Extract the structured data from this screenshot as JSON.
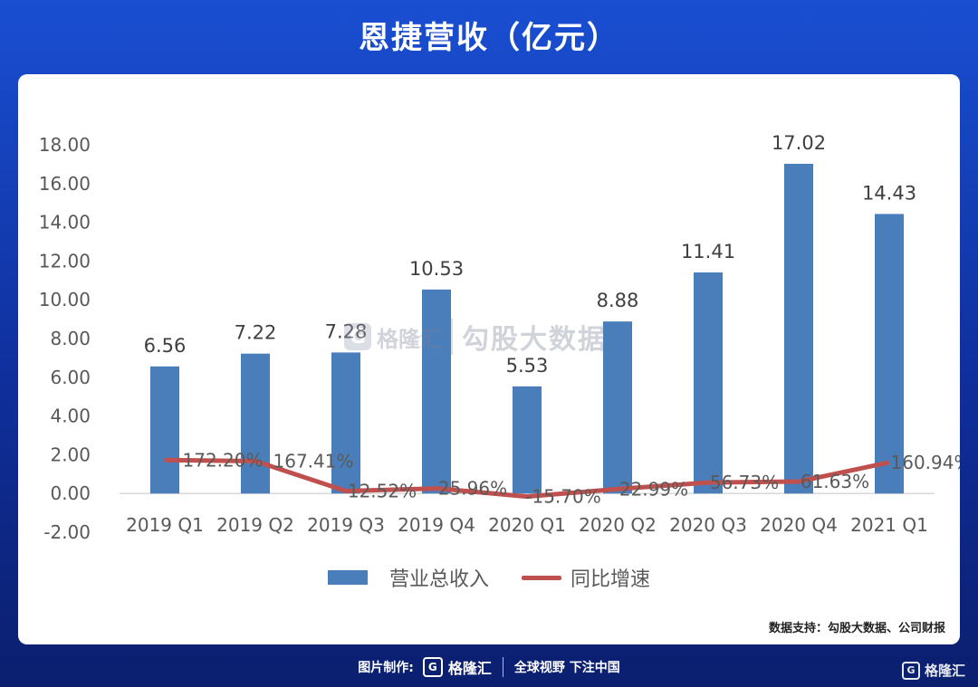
{
  "title": "恩捷营收（亿元）",
  "watermark": {
    "brand": "格隆汇",
    "text": "勾股大数据"
  },
  "source": "数据支持：勾股大数据、公司财报",
  "footer": {
    "label": "图片制作:",
    "brand": "格隆汇",
    "slogan": "全球视野 下注中国"
  },
  "corner_brand": "格隆汇",
  "colors": {
    "bar": "#4a7ebb",
    "line": "#c0504d",
    "axis_text": "#595959",
    "header_bg": "#1a4fd2"
  },
  "chart_data": {
    "type": "bar",
    "categories": [
      "2019 Q1",
      "2019 Q2",
      "2019 Q3",
      "2019 Q4",
      "2020 Q1",
      "2020 Q2",
      "2020 Q3",
      "2020 Q4",
      "2021 Q1"
    ],
    "series": [
      {
        "name": "营业总收入",
        "type": "bar",
        "values": [
          6.56,
          7.22,
          7.28,
          10.53,
          5.53,
          8.88,
          11.41,
          17.02,
          14.43
        ],
        "labels": [
          "6.56",
          "7.22",
          "7.28",
          "10.53",
          "5.53",
          "8.88",
          "11.41",
          "17.02",
          "14.43"
        ]
      },
      {
        "name": "同比增速",
        "type": "line",
        "values": [
          1.722,
          1.6741,
          0.1252,
          0.2596,
          -0.157,
          0.2299,
          0.5673,
          0.6163,
          1.6094
        ],
        "labels": [
          "172.20%",
          "167.41%",
          "12.52%",
          "25.96%",
          "-15.70%",
          "22.99%",
          "56.73%",
          "61.63%",
          "160.94%"
        ]
      }
    ],
    "yticks": [
      "18.00",
      "16.00",
      "14.00",
      "12.00",
      "10.00",
      "8.00",
      "6.00",
      "4.00",
      "2.00",
      "0.00",
      "-2.00"
    ],
    "ylim": [
      -2,
      18
    ],
    "legend_position": "bottom"
  }
}
